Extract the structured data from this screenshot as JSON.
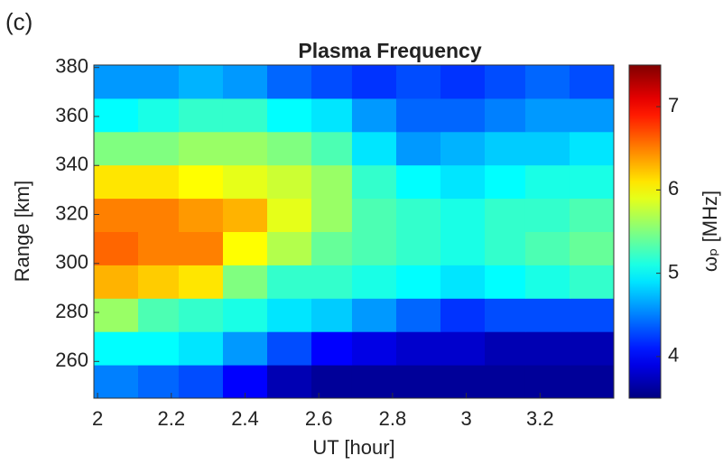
{
  "panel_label": "(c)",
  "chart_data": {
    "type": "heatmap",
    "title": "Plasma Frequency",
    "x_label": "UT [hour]",
    "y_label": "Range [km]",
    "colorbar_label": "ωₚ [MHz]",
    "xlim": [
      1.99,
      3.4
    ],
    "ylim": [
      245,
      381
    ],
    "clim": [
      3.5,
      7.5
    ],
    "xticks": [
      2,
      2.2,
      2.4,
      2.6,
      2.8,
      3,
      3.2
    ],
    "yticks": [
      260,
      280,
      300,
      320,
      340,
      360,
      380
    ],
    "cticks": [
      4,
      5,
      6,
      7
    ],
    "colormap": "jet",
    "xbins": [
      1.99,
      2.11,
      2.22,
      2.34,
      2.46,
      2.58,
      2.69,
      2.81,
      2.93,
      3.05,
      3.16,
      3.28,
      3.4
    ],
    "ybins": [
      245,
      258.6,
      272.2,
      285.8,
      299.4,
      313,
      326.6,
      340.2,
      353.8,
      367.4,
      381
    ],
    "z": [
      [
        4.5,
        4.4,
        4.3,
        4.0,
        3.7,
        3.6,
        3.6,
        3.6,
        3.6,
        3.6,
        3.6,
        3.6
      ],
      [
        5.0,
        5.0,
        4.9,
        4.6,
        4.3,
        4.0,
        3.9,
        3.8,
        3.8,
        3.7,
        3.7,
        3.7
      ],
      [
        5.6,
        5.3,
        5.2,
        5.1,
        4.9,
        4.8,
        4.6,
        4.4,
        4.2,
        4.3,
        4.3,
        4.3
      ],
      [
        6.3,
        6.2,
        6.1,
        5.5,
        5.2,
        5.2,
        5.1,
        5.0,
        4.9,
        5.0,
        5.1,
        5.2
      ],
      [
        6.6,
        6.5,
        6.5,
        6.0,
        5.7,
        5.4,
        5.3,
        5.2,
        5.1,
        5.2,
        5.3,
        5.4
      ],
      [
        6.5,
        6.5,
        6.4,
        6.3,
        5.9,
        5.6,
        5.3,
        5.2,
        5.1,
        5.2,
        5.2,
        5.3
      ],
      [
        6.1,
        6.1,
        6.0,
        5.9,
        5.8,
        5.6,
        5.2,
        5.0,
        4.9,
        5.0,
        5.1,
        5.1
      ],
      [
        5.5,
        5.5,
        5.6,
        5.6,
        5.5,
        5.3,
        4.9,
        4.6,
        4.7,
        4.8,
        4.8,
        4.9
      ],
      [
        5.0,
        5.1,
        5.2,
        5.2,
        5.0,
        4.9,
        4.6,
        4.4,
        4.4,
        4.5,
        4.6,
        4.6
      ],
      [
        4.6,
        4.6,
        4.7,
        4.6,
        4.4,
        4.3,
        4.2,
        4.3,
        4.2,
        4.3,
        4.4,
        4.3
      ]
    ]
  }
}
